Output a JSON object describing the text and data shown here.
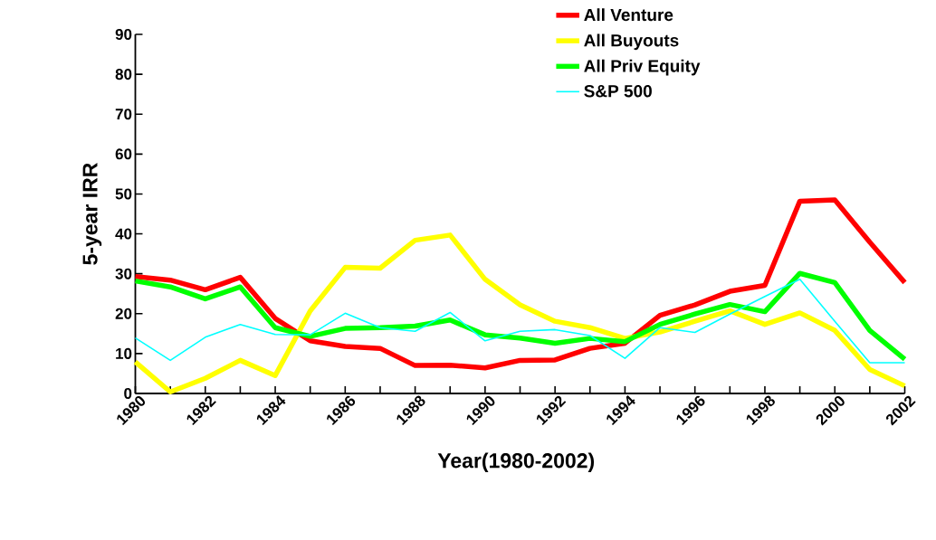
{
  "chart_data": {
    "type": "line",
    "xlabel": "Year(1980-2002)",
    "ylabel": "5-year IRR",
    "x": [
      1980,
      1981,
      1982,
      1983,
      1984,
      1985,
      1986,
      1987,
      1988,
      1989,
      1990,
      1991,
      1992,
      1993,
      1994,
      1995,
      1996,
      1997,
      1998,
      1999,
      2000,
      2001,
      2002
    ],
    "series": [
      {
        "name": "All Venture",
        "color": "#ff0000",
        "values": [
          29.3,
          28.4,
          26.0,
          29.1,
          18.8,
          13.2,
          11.8,
          11.3,
          7.0,
          7.1,
          6.4,
          8.3,
          8.4,
          11.3,
          12.6,
          19.6,
          22.2,
          25.6,
          27.1,
          48.2,
          48.5,
          37.9,
          27.8
        ]
      },
      {
        "name": "All Buyouts",
        "color": "#ffff00",
        "values": [
          7.9,
          0.4,
          3.8,
          8.3,
          4.5,
          20.7,
          31.6,
          31.4,
          38.4,
          39.7,
          28.6,
          22.2,
          18.1,
          16.5,
          13.8,
          15.4,
          18.1,
          20.7,
          17.3,
          20.2,
          15.8,
          6.0,
          1.9
        ]
      },
      {
        "name": "All Priv Equity",
        "color": "#00ff00",
        "values": [
          28.2,
          26.7,
          23.7,
          26.7,
          16.5,
          14.3,
          16.3,
          16.5,
          16.9,
          18.4,
          14.7,
          13.9,
          12.6,
          13.8,
          13.0,
          17.3,
          19.9,
          22.3,
          20.5,
          30.1,
          27.8,
          15.8,
          8.6
        ]
      },
      {
        "name": "S&P 500",
        "color": "#00ffff",
        "values": [
          13.9,
          8.3,
          14.1,
          17.3,
          14.8,
          14.7,
          20.1,
          16.5,
          15.6,
          20.3,
          13.2,
          15.6,
          16.0,
          14.5,
          8.8,
          16.5,
          15.3,
          19.9,
          24.3,
          28.6,
          18.1,
          7.7,
          7.7
        ]
      }
    ],
    "xlim": [
      1980,
      2002
    ],
    "xticks": [
      1980,
      {
        "value": 1981,
        "label": null
      },
      1982,
      {
        "value": 1983,
        "label": null
      },
      1984,
      {
        "value": 1985,
        "label": null
      },
      1986,
      {
        "value": 1987,
        "label": null
      },
      1988,
      {
        "value": 1989,
        "label": null
      },
      1990,
      {
        "value": 1991,
        "label": null
      },
      1992,
      {
        "value": 1993,
        "label": null
      },
      1994,
      {
        "value": 1995,
        "label": null
      },
      1996,
      {
        "value": 1997,
        "label": null
      },
      1998,
      {
        "value": 1999,
        "label": null
      },
      2000,
      {
        "value": 2001,
        "label": null
      },
      2002
    ],
    "ylim": [
      0,
      90
    ],
    "yticks": [
      0,
      10,
      20,
      30,
      40,
      50,
      60,
      70,
      80,
      90
    ],
    "legend": "top right",
    "grid": false,
    "marker": "none",
    "line_style": "solid"
  }
}
